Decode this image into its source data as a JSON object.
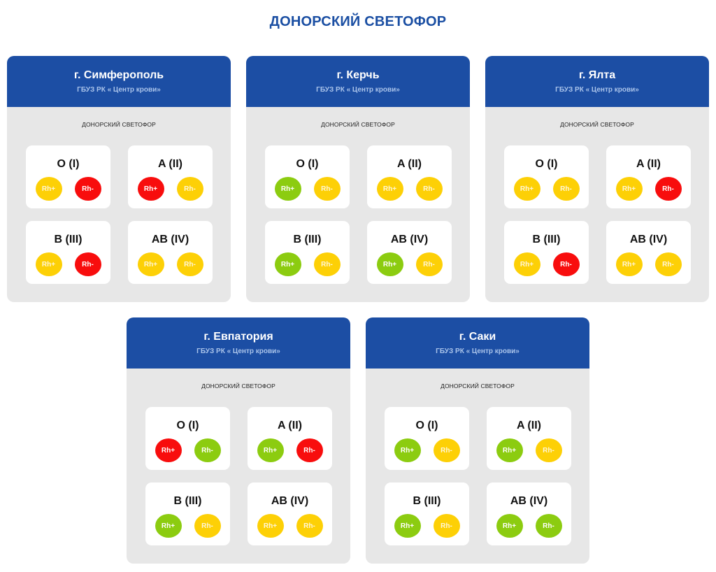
{
  "page_title": "ДОНОРСКИЙ СВЕТОФОР",
  "colors": {
    "green": "#8ccc10",
    "yellow": "#fdd006",
    "red": "#f80d0d",
    "header_blue": "#1c4ea4"
  },
  "cards": [
    {
      "city": "г. Симферополь",
      "org": "ГБУЗ РК « Центр крови»",
      "section_label": "ДОНОРСКИЙ СВЕТОФОР",
      "groups": [
        {
          "name": "O (I)",
          "rh_plus": {
            "label": "Rh+",
            "status": "yellow"
          },
          "rh_minus": {
            "label": "Rh-",
            "status": "red"
          }
        },
        {
          "name": "A (II)",
          "rh_plus": {
            "label": "Rh+",
            "status": "red"
          },
          "rh_minus": {
            "label": "Rh-",
            "status": "yellow"
          }
        },
        {
          "name": "B (III)",
          "rh_plus": {
            "label": "Rh+",
            "status": "yellow"
          },
          "rh_minus": {
            "label": "Rh-",
            "status": "red"
          }
        },
        {
          "name": "AB (IV)",
          "rh_plus": {
            "label": "Rh+",
            "status": "yellow"
          },
          "rh_minus": {
            "label": "Rh-",
            "status": "yellow"
          }
        }
      ]
    },
    {
      "city": "г. Керчь",
      "org": "ГБУЗ РК « Центр крови»",
      "section_label": "ДОНОРСКИЙ СВЕТОФОР",
      "groups": [
        {
          "name": "O (I)",
          "rh_plus": {
            "label": "Rh+",
            "status": "green"
          },
          "rh_minus": {
            "label": "Rh-",
            "status": "yellow"
          }
        },
        {
          "name": "A (II)",
          "rh_plus": {
            "label": "Rh+",
            "status": "yellow"
          },
          "rh_minus": {
            "label": "Rh-",
            "status": "yellow"
          }
        },
        {
          "name": "B (III)",
          "rh_plus": {
            "label": "Rh+",
            "status": "green"
          },
          "rh_minus": {
            "label": "Rh-",
            "status": "yellow"
          }
        },
        {
          "name": "AB (IV)",
          "rh_plus": {
            "label": "Rh+",
            "status": "green"
          },
          "rh_minus": {
            "label": "Rh-",
            "status": "yellow"
          }
        }
      ]
    },
    {
      "city": "г. Ялта",
      "org": "ГБУЗ РК « Центр крови»",
      "section_label": "ДОНОРСКИЙ СВЕТОФОР",
      "groups": [
        {
          "name": "O (I)",
          "rh_plus": {
            "label": "Rh+",
            "status": "yellow"
          },
          "rh_minus": {
            "label": "Rh-",
            "status": "yellow"
          }
        },
        {
          "name": "A (II)",
          "rh_plus": {
            "label": "Rh+",
            "status": "yellow"
          },
          "rh_minus": {
            "label": "Rh-",
            "status": "red"
          }
        },
        {
          "name": "B (III)",
          "rh_plus": {
            "label": "Rh+",
            "status": "yellow"
          },
          "rh_minus": {
            "label": "Rh-",
            "status": "red"
          }
        },
        {
          "name": "AB (IV)",
          "rh_plus": {
            "label": "Rh+",
            "status": "yellow"
          },
          "rh_minus": {
            "label": "Rh-",
            "status": "yellow"
          }
        }
      ]
    },
    {
      "city": "г. Евпатория",
      "org": "ГБУЗ РК « Центр крови»",
      "section_label": "ДОНОРСКИЙ СВЕТОФОР",
      "groups": [
        {
          "name": "O (I)",
          "rh_plus": {
            "label": "Rh+",
            "status": "red"
          },
          "rh_minus": {
            "label": "Rh-",
            "status": "green"
          }
        },
        {
          "name": "A (II)",
          "rh_plus": {
            "label": "Rh+",
            "status": "green"
          },
          "rh_minus": {
            "label": "Rh-",
            "status": "red"
          }
        },
        {
          "name": "B (III)",
          "rh_plus": {
            "label": "Rh+",
            "status": "green"
          },
          "rh_minus": {
            "label": "Rh-",
            "status": "yellow"
          }
        },
        {
          "name": "AB (IV)",
          "rh_plus": {
            "label": "Rh+",
            "status": "yellow"
          },
          "rh_minus": {
            "label": "Rh-",
            "status": "yellow"
          }
        }
      ]
    },
    {
      "city": "г. Саки",
      "org": "ГБУЗ РК « Центр крови»",
      "section_label": "ДОНОРСКИЙ СВЕТОФОР",
      "groups": [
        {
          "name": "O (I)",
          "rh_plus": {
            "label": "Rh+",
            "status": "green"
          },
          "rh_minus": {
            "label": "Rh-",
            "status": "yellow"
          }
        },
        {
          "name": "A (II)",
          "rh_plus": {
            "label": "Rh+",
            "status": "green"
          },
          "rh_minus": {
            "label": "Rh-",
            "status": "yellow"
          }
        },
        {
          "name": "B (III)",
          "rh_plus": {
            "label": "Rh+",
            "status": "green"
          },
          "rh_minus": {
            "label": "Rh-",
            "status": "yellow"
          }
        },
        {
          "name": "AB (IV)",
          "rh_plus": {
            "label": "Rh+",
            "status": "green"
          },
          "rh_minus": {
            "label": "Rh-",
            "status": "green"
          }
        }
      ]
    }
  ]
}
